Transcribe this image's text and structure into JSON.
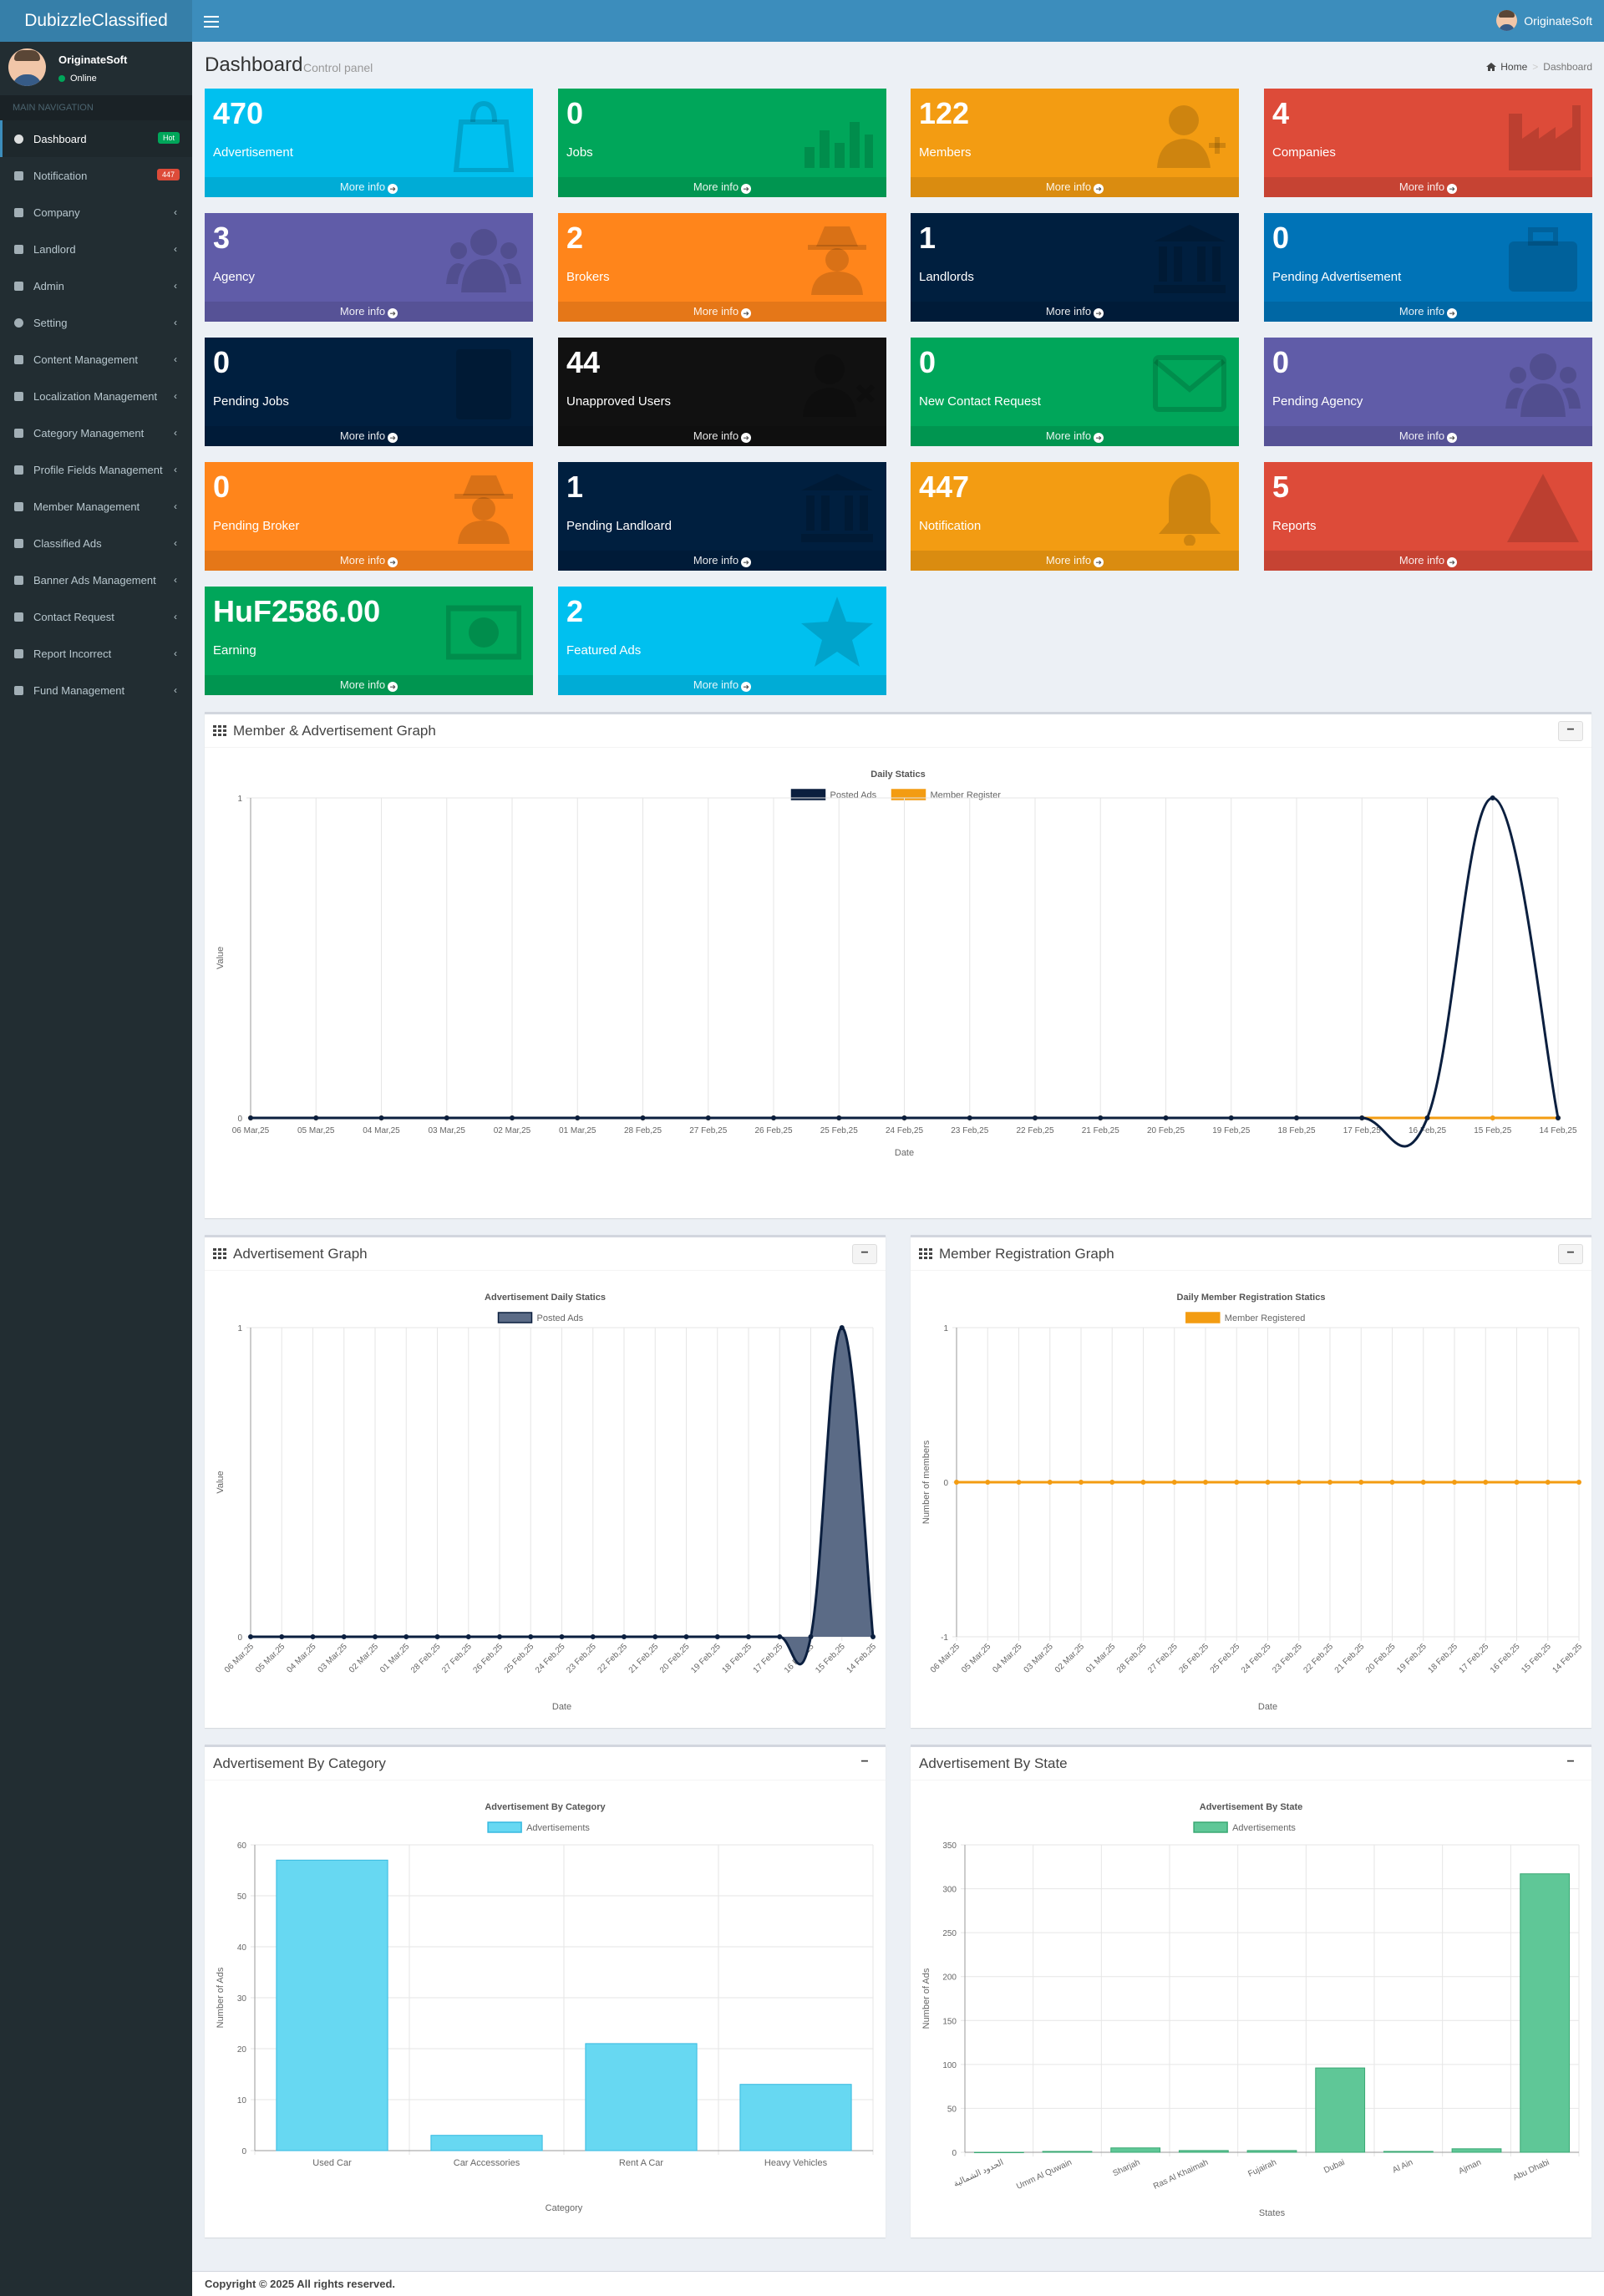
{
  "app": {
    "logo": "DubizzleClassified",
    "user": "OriginateSoft"
  },
  "sidebar": {
    "user_name": "OriginateSoft",
    "user_status": "Online",
    "nav_header": "MAIN NAVIGATION",
    "items": [
      {
        "label": "Dashboard",
        "icon": "dashboard-icon",
        "badge": "Hot",
        "badge_color": "#00a65a"
      },
      {
        "label": "Notification",
        "icon": "bell-icon",
        "badge": "447",
        "badge_color": "#dd4b39"
      },
      {
        "label": "Company",
        "icon": "chart-icon"
      },
      {
        "label": "Landlord",
        "icon": "bank-icon"
      },
      {
        "label": "Admin",
        "icon": "bank-icon"
      },
      {
        "label": "Setting",
        "icon": "gear-icon"
      },
      {
        "label": "Content Management",
        "icon": "text-cursor-icon"
      },
      {
        "label": "Localization Management",
        "icon": "map-marker-icon"
      },
      {
        "label": "Category Management",
        "icon": "pointer-icon"
      },
      {
        "label": "Profile Fields Management",
        "icon": "cubes-icon"
      },
      {
        "label": "Member Management",
        "icon": "users-icon"
      },
      {
        "label": "Classified Ads",
        "icon": "list-icon"
      },
      {
        "label": "Banner Ads Management",
        "icon": "list-icon"
      },
      {
        "label": "Contact Request",
        "icon": "envelope-icon"
      },
      {
        "label": "Report Incorrect",
        "icon": "file-icon"
      },
      {
        "label": "Fund Management",
        "icon": "money-icon"
      }
    ]
  },
  "header": {
    "title": "Dashboard",
    "subtitle": "Control panel",
    "breadcrumb_home": "Home",
    "breadcrumb_current": "Dashboard"
  },
  "more_info": "More info",
  "boxes": [
    {
      "value": "470",
      "label": "Advertisement",
      "color": "#00c0ef",
      "icon": "shopping-bag-icon"
    },
    {
      "value": "0",
      "label": "Jobs",
      "color": "#00a65a",
      "icon": "bar-chart-icon"
    },
    {
      "value": "122",
      "label": "Members",
      "color": "#f39c12",
      "icon": "user-plus-icon"
    },
    {
      "value": "4",
      "label": "Companies",
      "color": "#dd4b39",
      "icon": "industry-icon"
    },
    {
      "value": "3",
      "label": "Agency",
      "color": "#605ca8",
      "icon": "users-icon"
    },
    {
      "value": "2",
      "label": "Brokers",
      "color": "#ff851b",
      "icon": "user-secret-icon"
    },
    {
      "value": "1",
      "label": "Landlords",
      "color": "#001f3f",
      "icon": "bank-icon"
    },
    {
      "value": "0",
      "label": "Pending Advertisement",
      "color": "#0073b7",
      "icon": "briefcase-icon"
    },
    {
      "value": "0",
      "label": "Pending Jobs",
      "color": "#001f3f",
      "icon": "book-icon"
    },
    {
      "value": "44",
      "label": "Unapproved Users",
      "color": "#111111",
      "icon": "user-times-icon"
    },
    {
      "value": "0",
      "label": "New Contact Request",
      "color": "#00a65a",
      "icon": "envelope-icon"
    },
    {
      "value": "0",
      "label": "Pending Agency",
      "color": "#605ca8",
      "icon": "users-icon"
    },
    {
      "value": "0",
      "label": "Pending Broker",
      "color": "#ff851b",
      "icon": "user-secret-icon"
    },
    {
      "value": "1",
      "label": "Pending Landloard",
      "color": "#001f3f",
      "icon": "bank-icon"
    },
    {
      "value": "447",
      "label": "Notification",
      "color": "#f39c12",
      "icon": "bell-icon"
    },
    {
      "value": "5",
      "label": "Reports",
      "color": "#dd4b39",
      "icon": "warning-icon"
    },
    {
      "value": "HuF2586.00",
      "label": "Earning",
      "color": "#00a65a",
      "icon": "money-icon"
    },
    {
      "value": "2",
      "label": "Featured Ads",
      "color": "#00c0ef",
      "icon": "star-icon"
    }
  ],
  "panels": {
    "member_ad": "Member & Advertisement Graph",
    "ad_graph": "Advertisement Graph",
    "member_reg": "Member Registration Graph",
    "ad_category": "Advertisement By Category",
    "ad_state": "Advertisement By State"
  },
  "footer": {
    "copyright": "Copyright © 2025 All rights reserved."
  },
  "chart_data": [
    {
      "type": "line",
      "title": "Daily Statics",
      "xlabel": "Date",
      "ylabel": "Value",
      "ylim": [
        0,
        1
      ],
      "yticks": [
        "0",
        "1"
      ],
      "x": [
        "06 Mar,25",
        "05 Mar,25",
        "04 Mar,25",
        "03 Mar,25",
        "02 Mar,25",
        "01 Mar,25",
        "28 Feb,25",
        "27 Feb,25",
        "26 Feb,25",
        "25 Feb,25",
        "24 Feb,25",
        "23 Feb,25",
        "22 Feb,25",
        "21 Feb,25",
        "20 Feb,25",
        "19 Feb,25",
        "18 Feb,25",
        "17 Feb,25",
        "16 Feb,25",
        "15 Feb,25",
        "14 Feb,25"
      ],
      "series": [
        {
          "name": "Posted Ads",
          "color": "#0b1f3f",
          "values": [
            0,
            0,
            0,
            0,
            0,
            0,
            0,
            0,
            0,
            0,
            0,
            0,
            0,
            0,
            0,
            0,
            0,
            0,
            0,
            1,
            0
          ]
        },
        {
          "name": "Member Register",
          "color": "#f39c12",
          "values": [
            0,
            0,
            0,
            0,
            0,
            0,
            0,
            0,
            0,
            0,
            0,
            0,
            0,
            0,
            0,
            0,
            0,
            0,
            0,
            0,
            0
          ]
        }
      ],
      "legend": "top",
      "grid": true
    },
    {
      "type": "area",
      "title": "Advertisement Daily Statics",
      "xlabel": "Date",
      "ylabel": "Value",
      "ylim": [
        0,
        1
      ],
      "yticks": [
        "0",
        "1"
      ],
      "x": [
        "06 Mar,25",
        "05 Mar,25",
        "04 Mar,25",
        "03 Mar,25",
        "02 Mar,25",
        "01 Mar,25",
        "28 Feb,25",
        "27 Feb,25",
        "26 Feb,25",
        "25 Feb,25",
        "24 Feb,25",
        "23 Feb,25",
        "22 Feb,25",
        "21 Feb,25",
        "20 Feb,25",
        "19 Feb,25",
        "18 Feb,25",
        "17 Feb,25",
        "16 Feb,25",
        "15 Feb,25",
        "14 Feb,25"
      ],
      "series": [
        {
          "name": "Posted Ads",
          "color": "#0b1f3f",
          "fill": "#5b6b86",
          "values": [
            0,
            0,
            0,
            0,
            0,
            0,
            0,
            0,
            0,
            0,
            0,
            0,
            0,
            0,
            0,
            0,
            0,
            0,
            0,
            1,
            0
          ]
        }
      ],
      "legend": "top",
      "grid": true
    },
    {
      "type": "line",
      "title": "Daily Member Registration Statics",
      "xlabel": "Date",
      "ylabel": "Number of members",
      "ylim": [
        -1,
        1
      ],
      "yticks": [
        "-1",
        "0",
        "1"
      ],
      "x": [
        "06 Mar,25",
        "05 Mar,25",
        "04 Mar,25",
        "03 Mar,25",
        "02 Mar,25",
        "01 Mar,25",
        "28 Feb,25",
        "27 Feb,25",
        "26 Feb,25",
        "25 Feb,25",
        "24 Feb,25",
        "23 Feb,25",
        "22 Feb,25",
        "21 Feb,25",
        "20 Feb,25",
        "19 Feb,25",
        "18 Feb,25",
        "17 Feb,25",
        "16 Feb,25",
        "15 Feb,25",
        "14 Feb,25"
      ],
      "series": [
        {
          "name": "Member Registered",
          "color": "#f39c12",
          "values": [
            0,
            0,
            0,
            0,
            0,
            0,
            0,
            0,
            0,
            0,
            0,
            0,
            0,
            0,
            0,
            0,
            0,
            0,
            0,
            0,
            0
          ]
        }
      ],
      "legend": "top",
      "grid": true
    },
    {
      "type": "bar",
      "title": "Advertisement By Category",
      "xlabel": "Category",
      "ylabel": "Number of Ads",
      "ylim": [
        0,
        60
      ],
      "yticks": [
        "0",
        "10",
        "20",
        "30",
        "40",
        "50",
        "60"
      ],
      "categories": [
        "Used Car",
        "Car Accessories",
        "Rent A Car",
        "Heavy Vehicles"
      ],
      "series": [
        {
          "name": "Advertisements",
          "color": "#67d8f2",
          "stroke": "#36b9e0",
          "values": [
            57,
            3,
            21,
            13
          ]
        }
      ],
      "legend": "top",
      "grid": true
    },
    {
      "type": "bar",
      "title": "Advertisement By State",
      "xlabel": "States",
      "ylabel": "Number of Ads",
      "ylim": [
        0,
        350
      ],
      "yticks": [
        "0",
        "50",
        "100",
        "150",
        "200",
        "250",
        "300",
        "350"
      ],
      "categories": [
        "الحدود الشمالية",
        "Umm Al Quwain",
        "Sharjah",
        "Ras Al Khaimah",
        "Fujairah",
        "Dubai",
        "Al Ain",
        "Ajman",
        "Abu Dhabi"
      ],
      "series": [
        {
          "name": "Advertisements",
          "color": "#5fc797",
          "stroke": "#3aa873",
          "values": [
            0,
            1,
            5,
            2,
            2,
            96,
            1,
            4,
            317
          ]
        }
      ],
      "legend": "top",
      "grid": true
    }
  ]
}
